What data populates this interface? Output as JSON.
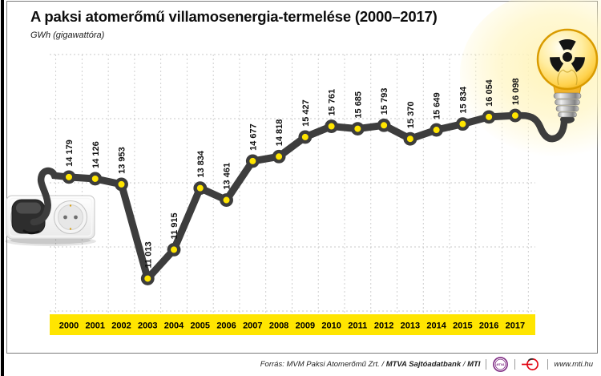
{
  "header": {
    "title": "A paksi atomerőmű villamosenergia-termelése (2000–2017)",
    "unit": "GWh (gigawattóra)"
  },
  "chart_data": {
    "type": "line",
    "title": "A paksi atomerőmű villamosenergia-termelése (2000–2017)",
    "ylabel": "GWh (gigawattóra)",
    "categories": [
      "2000",
      "2001",
      "2002",
      "2003",
      "2004",
      "2005",
      "2006",
      "2007",
      "2008",
      "2009",
      "2010",
      "2011",
      "2012",
      "2013",
      "2014",
      "2015",
      "2016",
      "2017"
    ],
    "values": [
      14179,
      14126,
      13953,
      11013,
      11915,
      13834,
      13461,
      14677,
      14818,
      15427,
      15761,
      15685,
      15793,
      15370,
      15649,
      15834,
      16054,
      16098
    ],
    "value_labels": [
      "14 179",
      "14 126",
      "13 953",
      "11 013",
      "11 915",
      "13 834",
      "13 461",
      "14 677",
      "14 818",
      "15 427",
      "15 761",
      "15 685",
      "15 793",
      "15 370",
      "15 649",
      "15 834",
      "16 054",
      "16 098"
    ],
    "ylim": [
      10000,
      18000
    ],
    "gridline_step": 2000,
    "grid": true,
    "legend": "none",
    "colors": {
      "line": "#3d3d3d",
      "marker_fill": "#ffe500",
      "marker_stroke": "#3d3d3d",
      "grid": "#c9c9c9",
      "year_band": "#ffe500",
      "label_text": "#111111",
      "glow": "#fff3b4"
    }
  },
  "decorations": {
    "left_icon": "power-socket-with-plug",
    "right_icon": "radiation-light-bulb"
  },
  "footer": {
    "source_prefix": "Forrás: MVM Paksi Atomerőmű Zrt. /",
    "source_bold1": "MTVA Sajtóadatbank",
    "source_sep": "/",
    "source_bold2": "MTI",
    "mtva_logo_text": "MTVA",
    "url": "www.mti.hu"
  }
}
